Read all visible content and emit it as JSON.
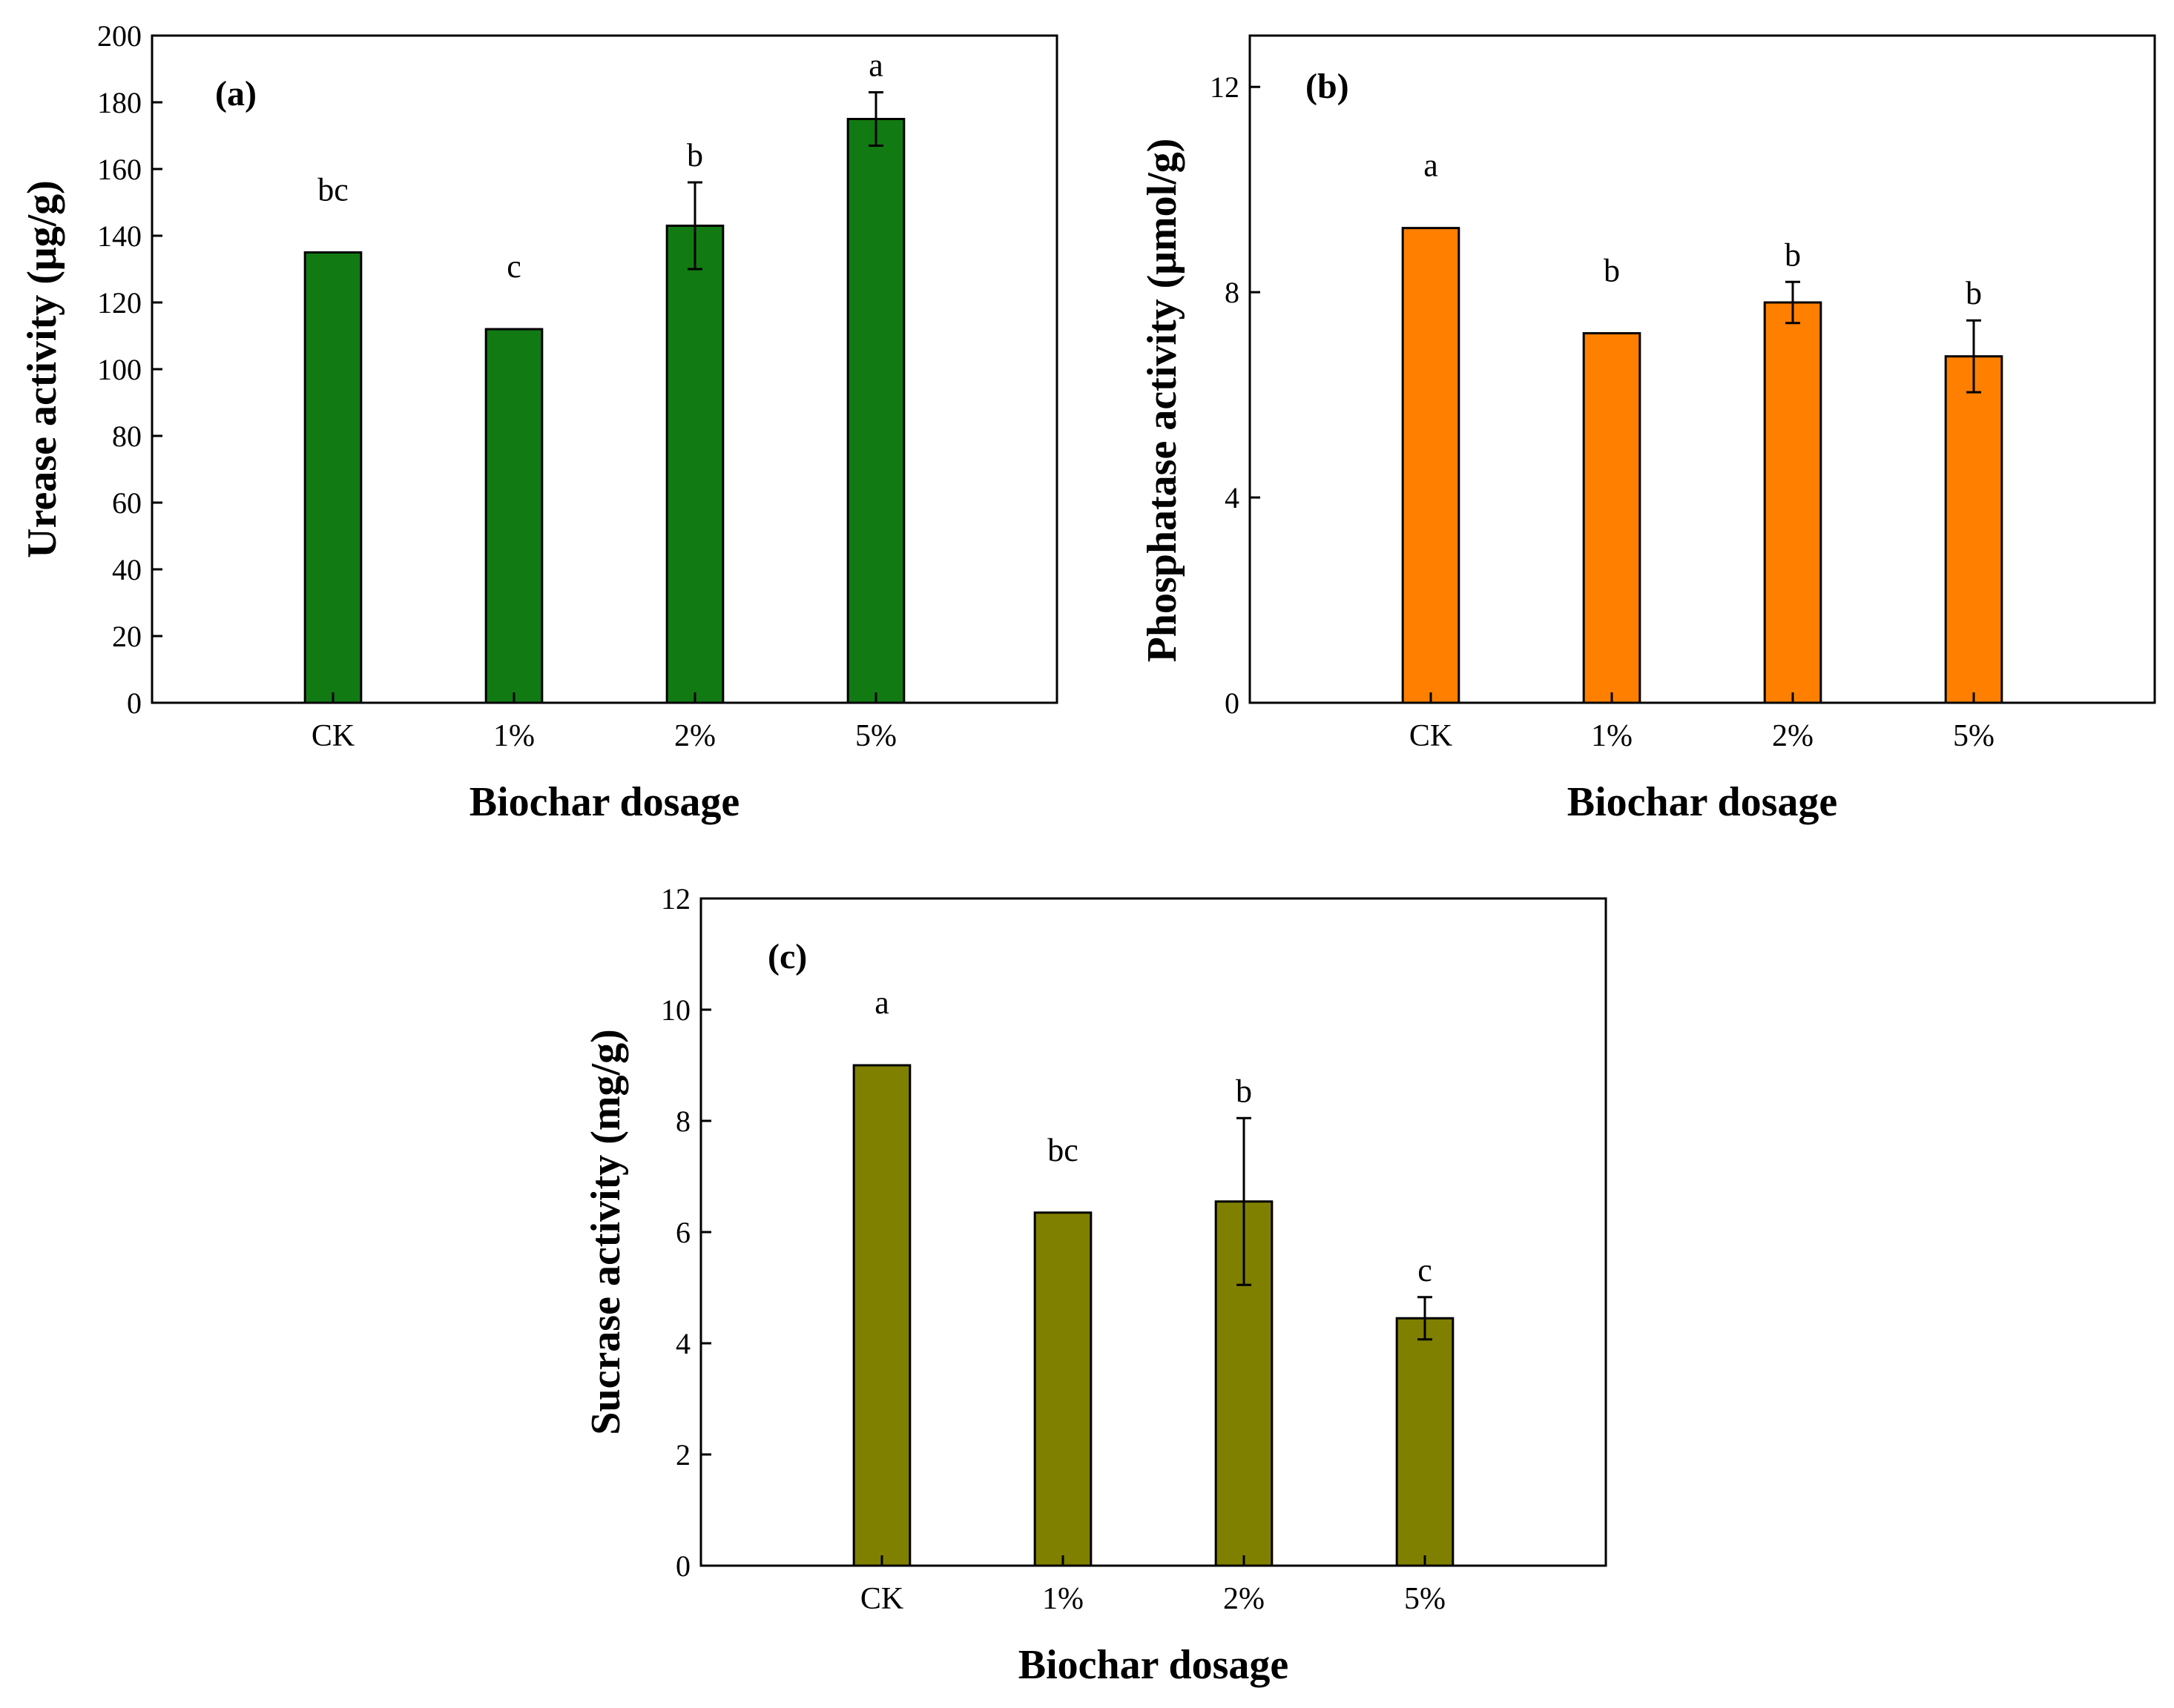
{
  "chart_data": [
    {
      "type": "bar",
      "panel": "(a)",
      "categories": [
        "CK",
        "1%",
        "2%",
        "5%"
      ],
      "values": [
        135,
        112,
        143,
        175
      ],
      "errors": [
        0,
        0,
        13,
        8
      ],
      "significance": [
        "bc",
        "c",
        "b",
        "a"
      ],
      "ylabel": "Urease activity (μg/g)",
      "xlabel": "Biochar dosage",
      "ylim": [
        0,
        200
      ],
      "yticks": [
        0,
        20,
        40,
        60,
        80,
        100,
        120,
        140,
        160,
        180,
        200
      ],
      "bar_color": "#127a12"
    },
    {
      "type": "bar",
      "panel": "(b)",
      "categories": [
        "CK",
        "1%",
        "2%",
        "5%"
      ],
      "values": [
        9.25,
        7.2,
        7.8,
        6.75
      ],
      "errors": [
        0,
        0,
        0.4,
        0.7
      ],
      "significance": [
        "a",
        "b",
        "b",
        "b"
      ],
      "ylabel": "Phosphatase activity (μmol/g)",
      "xlabel": "Biochar dosage",
      "ylim": [
        0,
        13
      ],
      "yticks": [
        0,
        4,
        8,
        12
      ],
      "bar_color": "#ff8000"
    },
    {
      "type": "bar",
      "panel": "(c)",
      "categories": [
        "CK",
        "1%",
        "2%",
        "5%"
      ],
      "values": [
        9.0,
        6.35,
        6.55,
        4.45
      ],
      "errors": [
        0,
        0,
        1.5,
        0.38
      ],
      "significance": [
        "a",
        "bc",
        "b",
        "c"
      ],
      "ylabel": "Sucrase activity (mg/g)",
      "xlabel": "Biochar dosage",
      "ylim": [
        0,
        12
      ],
      "yticks": [
        0,
        2,
        4,
        6,
        8,
        10,
        12
      ],
      "bar_color": "#808000"
    }
  ]
}
